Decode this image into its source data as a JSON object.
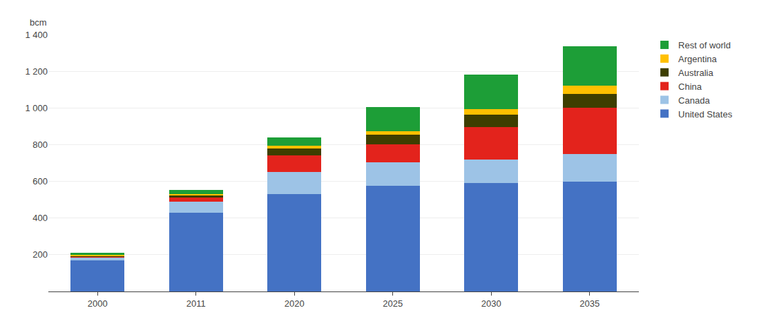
{
  "chart_data": {
    "type": "bar",
    "stacked": true,
    "ylabel": "bcm",
    "categories": [
      "2000",
      "2011",
      "2020",
      "2025",
      "2030",
      "2035"
    ],
    "series": [
      {
        "name": "United States",
        "color": "#4472C4",
        "values": [
          170,
          430,
          530,
          575,
          590,
          600
        ]
      },
      {
        "name": "Canada",
        "color": "#9DC3E6",
        "values": [
          15,
          60,
          120,
          130,
          130,
          150
        ]
      },
      {
        "name": "China",
        "color": "#E3231C",
        "values": [
          5,
          20,
          90,
          95,
          175,
          250
        ]
      },
      {
        "name": "Australia",
        "color": "#3E3E00",
        "values": [
          3,
          12,
          40,
          55,
          70,
          75
        ]
      },
      {
        "name": "Argentina",
        "color": "#FFC000",
        "values": [
          8,
          10,
          15,
          20,
          30,
          45
        ]
      },
      {
        "name": "Rest of world",
        "color": "#1D9E37",
        "values": [
          10,
          20,
          45,
          130,
          185,
          215
        ]
      }
    ],
    "ylim": [
      0,
      1400
    ],
    "yticks": [
      200,
      400,
      600,
      800,
      {
        "value": 1000,
        "label": "1 000"
      },
      {
        "value": 1200,
        "label": "1 200"
      },
      {
        "value": 1400,
        "label": "1 400"
      }
    ],
    "grid": true,
    "legend": "right"
  }
}
